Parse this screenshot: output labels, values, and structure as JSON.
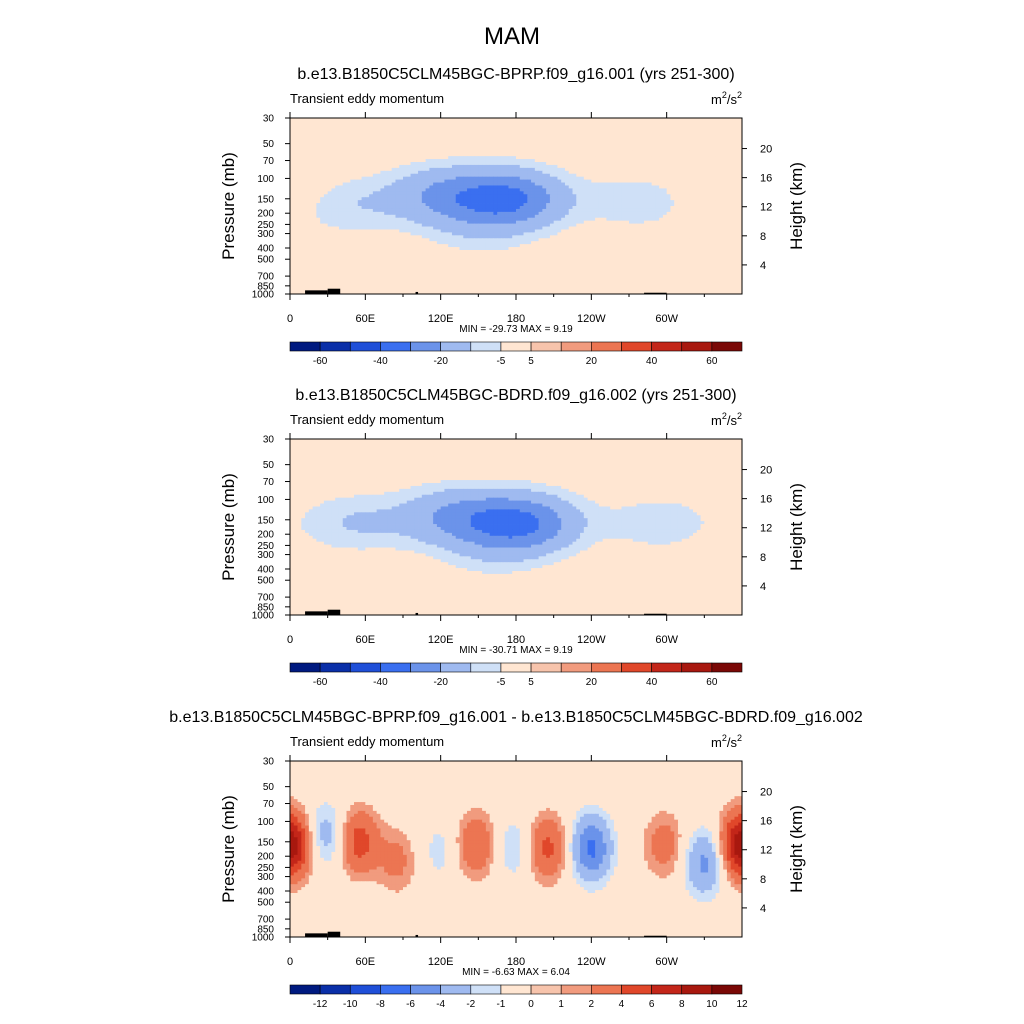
{
  "figure": {
    "title": "MAM"
  },
  "colors": {
    "neg": [
      "#001a80",
      "#0a2fa8",
      "#1f4fd8",
      "#3a6ff0",
      "#6b93ea",
      "#9fbaf0",
      "#cfe0f7"
    ],
    "pos": [
      "#ffe6d2",
      "#f7c4ac",
      "#f19b7e",
      "#ec7552",
      "#e0472a",
      "#c32619",
      "#a8180f",
      "#7a0806"
    ],
    "terrain": "#000000",
    "axis": "#000000"
  },
  "chart_data": [
    {
      "type": "heatmap",
      "title": "b.e13.B1850C5CLM45BGC-BPRP.f09_g16.001 (yrs 251-300)",
      "subtitle": "Transient eddy momentum",
      "units_base": "m",
      "units_exp": "2",
      "units_denom": "/s",
      "units_denom_exp": "2",
      "ylabel": "Pressure (mb)",
      "y2label": "Height (km)",
      "xticks": [
        "0",
        "60E",
        "120E",
        "180",
        "120W",
        "60W"
      ],
      "yticks": [
        "30",
        "50",
        "70",
        "100",
        "150",
        "200",
        "250",
        "300",
        "400",
        "500",
        "700",
        "850",
        "1000"
      ],
      "y2ticks": [
        "20",
        "16",
        "12",
        "8",
        "4"
      ],
      "minmax": "MIN = -29.73  MAX =   9.19",
      "colorbar": [
        "-60",
        "-40",
        "-20",
        "-5",
        "5",
        "20",
        "40",
        "60"
      ],
      "levels": [
        -70,
        -60,
        -50,
        -40,
        -30,
        -20,
        -10,
        -5,
        0,
        5,
        10,
        20,
        30,
        40,
        50,
        60,
        70
      ],
      "blobs": [
        {
          "lon": 175,
          "p": 150,
          "value": -30
        },
        {
          "lon": 120,
          "p": 140,
          "value": -18
        },
        {
          "lon": 40,
          "p": 170,
          "value": -10
        },
        {
          "lon": 280,
          "p": 160,
          "value": -8
        },
        {
          "lon": 150,
          "p": 300,
          "value": -5
        },
        {
          "lon": 0,
          "p": 140,
          "value": 5
        }
      ]
    },
    {
      "type": "heatmap",
      "title": "b.e13.B1850C5CLM45BGC-BDRD.f09_g16.002 (yrs 251-300)",
      "subtitle": "Transient eddy momentum",
      "units_base": "m",
      "units_exp": "2",
      "units_denom": "/s",
      "units_denom_exp": "2",
      "ylabel": "Pressure (mb)",
      "y2label": "Height (km)",
      "xticks": [
        "0",
        "60E",
        "120E",
        "180",
        "120W",
        "60W"
      ],
      "yticks": [
        "30",
        "50",
        "70",
        "100",
        "150",
        "200",
        "250",
        "300",
        "400",
        "500",
        "700",
        "850",
        "1000"
      ],
      "y2ticks": [
        "20",
        "16",
        "12",
        "8",
        "4"
      ],
      "minmax": "MIN = -30.71  MAX =   9.19",
      "colorbar": [
        "-60",
        "-40",
        "-20",
        "-5",
        "5",
        "20",
        "40",
        "60"
      ],
      "levels": [
        -70,
        -60,
        -50,
        -40,
        -30,
        -20,
        -10,
        -5,
        0,
        5,
        10,
        20,
        30,
        40,
        50,
        60,
        70
      ],
      "blobs": [
        {
          "lon": 185,
          "p": 160,
          "value": -30
        },
        {
          "lon": 130,
          "p": 140,
          "value": -18
        },
        {
          "lon": 50,
          "p": 160,
          "value": -10
        },
        {
          "lon": 295,
          "p": 160,
          "value": -8
        },
        {
          "lon": 160,
          "p": 300,
          "value": -5
        }
      ]
    },
    {
      "type": "heatmap",
      "title": "b.e13.B1850C5CLM45BGC-BPRP.f09_g16.001 - b.e13.B1850C5CLM45BGC-BDRD.f09_g16.002",
      "subtitle": "Transient eddy momentum",
      "units_base": "m",
      "units_exp": "2",
      "units_denom": "/s",
      "units_denom_exp": "2",
      "ylabel": "Pressure (mb)",
      "y2label": "Height (km)",
      "xticks": [
        "0",
        "60E",
        "120E",
        "180",
        "120W",
        "60W"
      ],
      "yticks": [
        "30",
        "50",
        "70",
        "100",
        "150",
        "200",
        "250",
        "300",
        "400",
        "500",
        "700",
        "850",
        "1000"
      ],
      "y2ticks": [
        "20",
        "16",
        "12",
        "8",
        "4"
      ],
      "minmax": "MIN = -6.63  MAX =   6.04",
      "colorbar": [
        "-12",
        "-10",
        "-8",
        "-6",
        "-4",
        "-2",
        "-1",
        "0",
        "1",
        "2",
        "4",
        "6",
        "8",
        "10",
        "12"
      ],
      "levels": [
        -14,
        -12,
        -10,
        -8,
        -6,
        -4,
        -2,
        -1,
        0,
        1,
        2,
        4,
        6,
        8,
        10,
        12,
        14
      ],
      "blobs": [
        {
          "lon": 2,
          "p": 170,
          "value": 5
        },
        {
          "lon": 28,
          "p": 130,
          "value": -3
        },
        {
          "lon": 55,
          "p": 150,
          "value": 5
        },
        {
          "lon": 85,
          "p": 220,
          "value": 2.5
        },
        {
          "lon": 148,
          "p": 160,
          "value": 4
        },
        {
          "lon": 178,
          "p": 170,
          "value": -2
        },
        {
          "lon": 205,
          "p": 170,
          "value": 4.5
        },
        {
          "lon": 240,
          "p": 170,
          "value": -6.5
        },
        {
          "lon": 298,
          "p": 160,
          "value": 3
        },
        {
          "lon": 330,
          "p": 230,
          "value": -4.5
        },
        {
          "lon": 358,
          "p": 150,
          "value": 5
        },
        {
          "lon": 120,
          "p": 180,
          "value": -1.5
        }
      ]
    }
  ]
}
